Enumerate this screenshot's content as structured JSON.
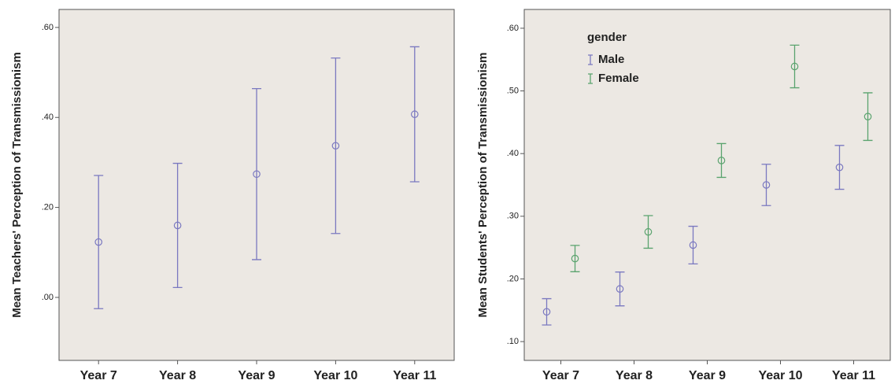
{
  "chart_data": [
    {
      "type": "errorbar",
      "y_label": "Mean Teachers' Perception of Transmissionism",
      "categories": [
        "Year 7",
        "Year 8",
        "Year 9",
        "Year 10",
        "Year 11"
      ],
      "values": [
        0.123,
        0.16,
        0.274,
        0.337,
        0.407
      ],
      "errors": [
        0.148,
        0.138,
        0.19,
        0.195,
        0.15
      ],
      "color": "#7a78c0",
      "ylim": [
        -0.14,
        0.64
      ],
      "yticks": [
        {
          "value": 0,
          "label": ".00"
        },
        {
          "value": 0.2,
          "label": ".20"
        },
        {
          "value": 0.4,
          "label": ".40"
        },
        {
          "value": 0.6,
          "label": ".60"
        }
      ]
    },
    {
      "type": "errorbar",
      "y_label": "Mean Students' Perception of Transmissionism",
      "legend_title": "gender",
      "categories": [
        "Year 7",
        "Year 8",
        "Year 9",
        "Year 10",
        "Year 11"
      ],
      "series": [
        {
          "name": "Male",
          "color": "#7a78c0",
          "values": [
            0.1475,
            0.184,
            0.254,
            0.35,
            0.378
          ],
          "errors": [
            0.021,
            0.027,
            0.03,
            0.033,
            0.035
          ]
        },
        {
          "name": "Female",
          "color": "#5aa36e",
          "values": [
            0.2325,
            0.275,
            0.389,
            0.539,
            0.459
          ],
          "errors": [
            0.021,
            0.026,
            0.027,
            0.034,
            0.038
          ]
        }
      ],
      "ylim": [
        0.07,
        0.63
      ],
      "yticks": [
        {
          "value": 0.1,
          "label": ".10"
        },
        {
          "value": 0.2,
          "label": ".20"
        },
        {
          "value": 0.3,
          "label": ".30"
        },
        {
          "value": 0.4,
          "label": ".40"
        },
        {
          "value": 0.5,
          "label": ".50"
        },
        {
          "value": 0.6,
          "label": ".60"
        }
      ]
    }
  ]
}
